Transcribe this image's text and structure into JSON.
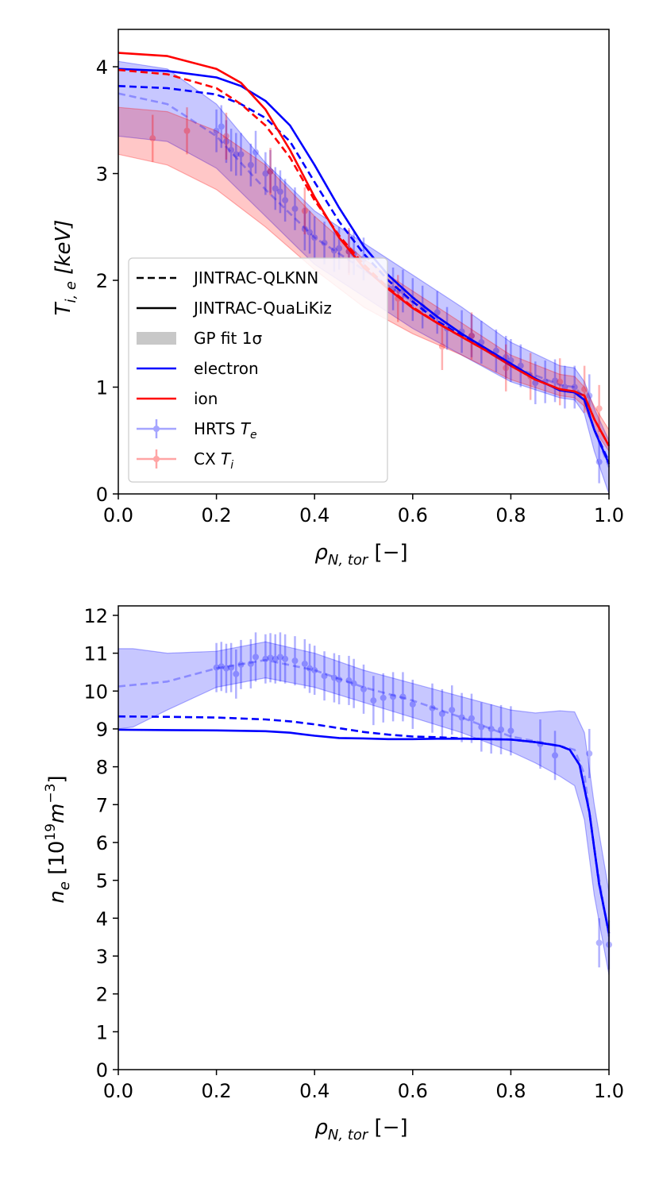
{
  "chart_data": [
    {
      "type": "line",
      "xlabel_parts": {
        "sym": "ρ",
        "sub": "N, tor",
        "unit": " [−]"
      },
      "ylabel_parts": {
        "sym": "T",
        "sub": "i, e",
        "unit": " [keV]"
      },
      "xlim": [
        0,
        1
      ],
      "ylim": [
        0,
        4.35
      ],
      "xticks": [
        "0.0",
        "0.2",
        "0.4",
        "0.6",
        "0.8",
        "1.0"
      ],
      "yticks": [
        "0",
        "1",
        "2",
        "3",
        "4"
      ],
      "legend_position": "lower-left",
      "legend": {
        "qlknn": "JINTRAC-QLKNN",
        "qualikiz": "JINTRAC-QuaLiKiz",
        "gp": "GP fit 1σ",
        "electron": "electron",
        "ion": "ion",
        "hrts": "HRTS",
        "hrts_sym": "T",
        "hrts_sub": "e",
        "cx": "CX",
        "cx_sym": "T",
        "cx_sub": "i"
      },
      "colors": {
        "electron": "#0000ff",
        "ion": "#ff0000",
        "gp_gray": "#c8c8c8"
      },
      "series": [
        {
          "key": "te_qlknn",
          "x": [
            0,
            0.1,
            0.2,
            0.25,
            0.3,
            0.35,
            0.4,
            0.45,
            0.5,
            0.55,
            0.6,
            0.65,
            0.7,
            0.75,
            0.8,
            0.85,
            0.9,
            0.93,
            0.95,
            0.97,
            1.0
          ],
          "y": [
            3.82,
            3.8,
            3.74,
            3.65,
            3.52,
            3.3,
            2.92,
            2.55,
            2.25,
            2.0,
            1.8,
            1.62,
            1.48,
            1.35,
            1.22,
            1.08,
            0.97,
            0.95,
            0.88,
            0.6,
            0.3
          ]
        },
        {
          "key": "te_qualikiz",
          "x": [
            0,
            0.1,
            0.2,
            0.25,
            0.3,
            0.35,
            0.4,
            0.45,
            0.5,
            0.55,
            0.6,
            0.65,
            0.7,
            0.75,
            0.8,
            0.85,
            0.9,
            0.93,
            0.95,
            0.97,
            1.0
          ],
          "y": [
            3.98,
            3.96,
            3.9,
            3.82,
            3.68,
            3.45,
            3.08,
            2.68,
            2.32,
            2.05,
            1.84,
            1.66,
            1.5,
            1.36,
            1.22,
            1.08,
            0.97,
            0.95,
            0.88,
            0.6,
            0.28
          ]
        },
        {
          "key": "ti_qlknn",
          "x": [
            0,
            0.1,
            0.2,
            0.25,
            0.3,
            0.35,
            0.4,
            0.45,
            0.5,
            0.55,
            0.6,
            0.65,
            0.7,
            0.75,
            0.8,
            0.85,
            0.9,
            0.93,
            0.95,
            0.97,
            1.0
          ],
          "y": [
            3.97,
            3.93,
            3.8,
            3.65,
            3.45,
            3.15,
            2.75,
            2.42,
            2.15,
            1.93,
            1.75,
            1.6,
            1.47,
            1.34,
            1.2,
            1.07,
            0.98,
            0.96,
            0.92,
            0.7,
            0.45
          ]
        },
        {
          "key": "ti_qualikiz",
          "x": [
            0,
            0.1,
            0.2,
            0.25,
            0.3,
            0.35,
            0.4,
            0.45,
            0.5,
            0.55,
            0.6,
            0.65,
            0.7,
            0.75,
            0.8,
            0.85,
            0.9,
            0.93,
            0.95,
            0.97,
            1.0
          ],
          "y": [
            4.13,
            4.1,
            3.98,
            3.85,
            3.6,
            3.22,
            2.78,
            2.4,
            2.12,
            1.92,
            1.74,
            1.6,
            1.47,
            1.34,
            1.2,
            1.07,
            0.98,
            0.96,
            0.92,
            0.7,
            0.45
          ]
        },
        {
          "key": "te_gp_mean",
          "x": [
            0,
            0.1,
            0.2,
            0.3,
            0.4,
            0.5,
            0.6,
            0.7,
            0.8,
            0.9,
            0.93,
            0.95,
            0.97,
            1.0
          ],
          "y": [
            3.75,
            3.65,
            3.35,
            2.85,
            2.4,
            2.1,
            1.8,
            1.5,
            1.2,
            1.02,
            1.0,
            0.9,
            0.6,
            0.25
          ]
        }
      ],
      "bands": [
        {
          "key": "te_band",
          "x": [
            0,
            0.1,
            0.2,
            0.3,
            0.4,
            0.5,
            0.6,
            0.7,
            0.8,
            0.9,
            0.93,
            0.95,
            0.97,
            1.0
          ],
          "lower": [
            3.35,
            3.3,
            3.05,
            2.6,
            2.15,
            1.85,
            1.55,
            1.3,
            1.05,
            0.9,
            0.88,
            0.75,
            0.4,
            0.0
          ],
          "upper": [
            4.05,
            3.98,
            3.65,
            3.1,
            2.65,
            2.35,
            2.05,
            1.75,
            1.42,
            1.2,
            1.18,
            1.05,
            0.8,
            0.5
          ]
        },
        {
          "key": "ti_band",
          "x": [
            0,
            0.1,
            0.2,
            0.3,
            0.4,
            0.5,
            0.6,
            0.7,
            0.8,
            0.9,
            0.93,
            0.95,
            0.97,
            1.0
          ],
          "lower": [
            3.18,
            3.08,
            2.85,
            2.5,
            2.1,
            1.75,
            1.5,
            1.3,
            1.07,
            0.92,
            0.9,
            0.82,
            0.6,
            0.4
          ],
          "upper": [
            3.62,
            3.58,
            3.4,
            3.08,
            2.6,
            2.2,
            1.9,
            1.6,
            1.3,
            1.12,
            1.1,
            1.0,
            0.82,
            0.6
          ]
        }
      ],
      "hrts_points": {
        "x": [
          0.2,
          0.21,
          0.22,
          0.23,
          0.24,
          0.25,
          0.27,
          0.28,
          0.3,
          0.31,
          0.32,
          0.33,
          0.34,
          0.36,
          0.38,
          0.39,
          0.4,
          0.42,
          0.44,
          0.45,
          0.47,
          0.48,
          0.5,
          0.56,
          0.58,
          0.6,
          0.62,
          0.65,
          0.67,
          0.7,
          0.72,
          0.74,
          0.77,
          0.79,
          0.8,
          0.82,
          0.85,
          0.87,
          0.89,
          0.91,
          0.93,
          0.96,
          0.98
        ],
        "y": [
          3.4,
          3.44,
          3.3,
          3.22,
          3.18,
          3.18,
          3.08,
          3.2,
          3.0,
          3.02,
          2.86,
          2.83,
          2.75,
          2.67,
          2.48,
          2.45,
          2.4,
          2.35,
          2.28,
          2.3,
          2.27,
          2.25,
          2.2,
          1.92,
          1.9,
          1.82,
          1.75,
          1.7,
          1.55,
          1.52,
          1.48,
          1.42,
          1.34,
          1.28,
          1.25,
          1.2,
          1.04,
          1.05,
          1.06,
          1.0,
          1.0,
          0.92,
          0.3
        ],
        "err": 0.2
      },
      "cx_points": {
        "x": [
          0.07,
          0.14,
          0.22,
          0.31,
          0.38,
          0.47,
          0.57,
          0.66,
          0.72,
          0.79,
          0.84,
          0.9,
          0.95,
          0.98
        ],
        "y": [
          3.33,
          3.4,
          3.35,
          3.02,
          2.65,
          2.27,
          1.83,
          1.38,
          1.48,
          1.18,
          1.1,
          1.05,
          0.98,
          0.8
        ],
        "err": 0.22
      }
    },
    {
      "type": "line",
      "xlabel_parts": {
        "sym": "ρ",
        "sub": "N, tor",
        "unit": " [−]"
      },
      "ylabel_parts": {
        "sym": "n",
        "sub": "e",
        "unit": " [10",
        "exp": "19",
        "unit2": "m",
        "exp2": "−3",
        "close": "]"
      },
      "xlim": [
        0,
        1
      ],
      "ylim": [
        0,
        12.25
      ],
      "xticks": [
        "0.0",
        "0.2",
        "0.4",
        "0.6",
        "0.8",
        "1.0"
      ],
      "yticks": [
        "0",
        "1",
        "2",
        "3",
        "4",
        "5",
        "6",
        "7",
        "8",
        "9",
        "10",
        "11",
        "12"
      ],
      "colors": {
        "electron": "#0000ff"
      },
      "series": [
        {
          "key": "ne_qlknn",
          "x": [
            0,
            0.1,
            0.2,
            0.3,
            0.35,
            0.4,
            0.45,
            0.5,
            0.55,
            0.6,
            0.65,
            0.7,
            0.75,
            0.8,
            0.85,
            0.9,
            0.92,
            0.94,
            0.96,
            0.98,
            1.0
          ],
          "y": [
            9.33,
            9.32,
            9.3,
            9.25,
            9.2,
            9.12,
            9.02,
            8.92,
            8.85,
            8.8,
            8.78,
            8.75,
            8.73,
            8.72,
            8.65,
            8.55,
            8.45,
            8.05,
            6.8,
            4.9,
            3.6
          ]
        },
        {
          "key": "ne_qualikiz",
          "x": [
            0,
            0.1,
            0.2,
            0.3,
            0.35,
            0.4,
            0.45,
            0.5,
            0.55,
            0.6,
            0.65,
            0.7,
            0.75,
            0.8,
            0.85,
            0.9,
            0.92,
            0.94,
            0.96,
            0.98,
            1.0
          ],
          "y": [
            8.98,
            8.97,
            8.96,
            8.94,
            8.9,
            8.82,
            8.76,
            8.75,
            8.73,
            8.73,
            8.74,
            8.74,
            8.73,
            8.72,
            8.65,
            8.55,
            8.45,
            8.05,
            6.8,
            4.9,
            3.6
          ]
        },
        {
          "key": "ne_gp_mean",
          "x": [
            0,
            0.1,
            0.2,
            0.3,
            0.4,
            0.5,
            0.6,
            0.7,
            0.8,
            0.9,
            0.93,
            0.95,
            0.97,
            1.0
          ],
          "y": [
            10.12,
            10.25,
            10.6,
            10.82,
            10.55,
            10.1,
            9.75,
            9.3,
            8.8,
            8.55,
            8.45,
            7.8,
            5.8,
            3.5
          ]
        }
      ],
      "bands": [
        {
          "key": "ne_band",
          "x": [
            0,
            0.03,
            0.1,
            0.2,
            0.3,
            0.4,
            0.5,
            0.6,
            0.7,
            0.8,
            0.85,
            0.9,
            0.93,
            0.95,
            0.97,
            1.0
          ],
          "lower": [
            9.0,
            9.05,
            9.5,
            10.1,
            10.35,
            10.1,
            9.7,
            9.3,
            8.9,
            8.4,
            8.1,
            7.75,
            7.5,
            6.6,
            4.6,
            2.5
          ],
          "upper": [
            11.12,
            11.12,
            11.0,
            11.05,
            11.3,
            11.0,
            10.55,
            10.2,
            9.85,
            9.5,
            9.42,
            9.48,
            9.45,
            8.9,
            7.0,
            4.7
          ]
        }
      ],
      "hrts_points": {
        "x": [
          0.2,
          0.21,
          0.22,
          0.23,
          0.24,
          0.25,
          0.27,
          0.28,
          0.3,
          0.31,
          0.32,
          0.33,
          0.34,
          0.36,
          0.38,
          0.39,
          0.4,
          0.42,
          0.44,
          0.45,
          0.47,
          0.48,
          0.5,
          0.52,
          0.54,
          0.56,
          0.58,
          0.6,
          0.64,
          0.66,
          0.68,
          0.7,
          0.72,
          0.74,
          0.76,
          0.78,
          0.8,
          0.86,
          0.89,
          0.96,
          0.98,
          1.0
        ],
        "y": [
          10.62,
          10.65,
          10.6,
          10.62,
          10.45,
          10.7,
          10.72,
          10.9,
          10.85,
          10.88,
          10.85,
          10.9,
          10.85,
          10.8,
          10.72,
          10.6,
          10.55,
          10.4,
          10.35,
          10.3,
          10.28,
          10.2,
          10.05,
          9.75,
          9.82,
          9.85,
          9.85,
          9.65,
          9.55,
          9.4,
          9.5,
          9.3,
          9.28,
          9.05,
          9.0,
          8.98,
          8.95,
          8.6,
          8.3,
          8.35,
          3.35,
          3.3
        ],
        "err": 0.65
      }
    }
  ]
}
